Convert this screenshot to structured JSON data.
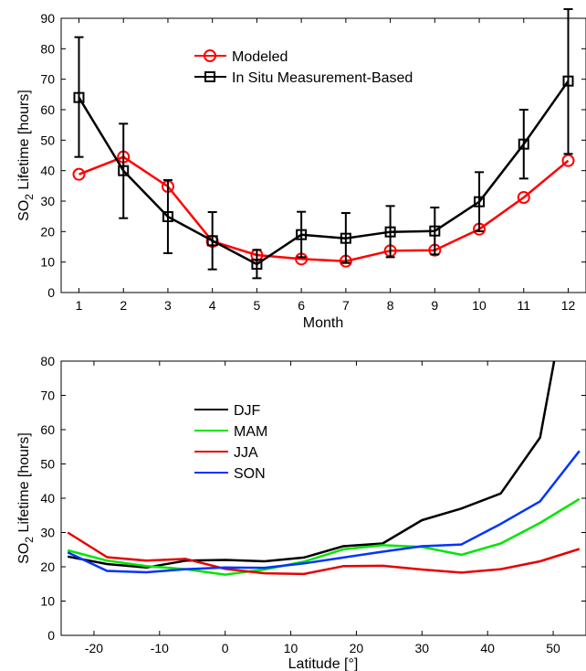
{
  "chart_data": [
    {
      "type": "line",
      "xlabel": "Month",
      "ylabel_main": "SO",
      "ylabel_sub": "2",
      "ylabel_rest": " Lifetime [hours]",
      "xlim": [
        0.6,
        12.4
      ],
      "ylim": [
        0,
        90
      ],
      "xticks": [
        1,
        2,
        3,
        4,
        5,
        6,
        7,
        8,
        9,
        10,
        11,
        12
      ],
      "yticks": [
        0,
        10,
        20,
        30,
        40,
        50,
        60,
        70,
        80,
        90
      ],
      "legend_position": "top-center",
      "x": [
        1,
        2,
        3,
        4,
        5,
        6,
        7,
        8,
        9,
        10,
        11,
        12
      ],
      "series": [
        {
          "name": "Modeled",
          "color": "#ff0000",
          "marker": "circle",
          "values": [
            38.8,
            44.5,
            34.8,
            16.8,
            12.3,
            11.0,
            10.3,
            13.7,
            13.9,
            20.8,
            31.2,
            43.3
          ]
        },
        {
          "name": "In Situ Measurement-Based",
          "color": "#000000",
          "marker": "square",
          "values": [
            64.0,
            40.0,
            24.9,
            17.0,
            9.3,
            19.0,
            17.8,
            19.9,
            20.2,
            29.8,
            48.7,
            69.4
          ],
          "error_low": [
            44.5,
            24.4,
            12.9,
            7.6,
            4.7,
            11.6,
            9.7,
            11.6,
            12.5,
            20.1,
            37.4,
            45.5
          ],
          "error_high": [
            83.8,
            55.4,
            36.9,
            26.4,
            14.0,
            26.5,
            26.1,
            28.4,
            27.9,
            39.5,
            60.0,
            93.0
          ]
        }
      ]
    },
    {
      "type": "line",
      "xlabel": "Latitude [°]",
      "ylabel_main": "SO",
      "ylabel_sub": "2",
      "ylabel_rest": " Lifetime [hours]",
      "xlim": [
        -25,
        55
      ],
      "ylim": [
        0,
        80
      ],
      "xticks": [
        -20,
        -10,
        0,
        10,
        20,
        30,
        40,
        50
      ],
      "yticks": [
        0,
        10,
        20,
        30,
        40,
        50,
        60,
        70,
        80
      ],
      "legend_position": "top-left",
      "x": [
        -24,
        -18,
        -12,
        -6,
        0,
        6,
        12,
        18,
        24,
        30,
        36,
        42,
        48,
        54
      ],
      "series": [
        {
          "name": "DJF",
          "color": "#000000",
          "values": [
            23.0,
            20.8,
            19.8,
            21.8,
            22.0,
            21.6,
            22.7,
            26.0,
            26.8,
            33.6,
            37.0,
            41.4,
            57.7,
            120
          ]
        },
        {
          "name": "MAM",
          "color": "#00e600",
          "values": [
            24.8,
            21.8,
            20.2,
            19.3,
            17.7,
            19.2,
            21.5,
            25.1,
            26.3,
            25.8,
            23.5,
            26.8,
            32.8,
            39.8
          ]
        },
        {
          "name": "JJA",
          "color": "#e60000",
          "values": [
            30.0,
            22.8,
            21.8,
            22.3,
            19.4,
            18.1,
            17.9,
            20.2,
            20.3,
            19.2,
            18.3,
            19.3,
            21.6,
            25.2
          ]
        },
        {
          "name": "SON",
          "color": "#0033ff",
          "values": [
            24.2,
            18.8,
            18.4,
            19.3,
            19.8,
            19.7,
            21.0,
            22.7,
            24.4,
            26.0,
            26.5,
            32.5,
            39.1,
            53.8
          ]
        }
      ]
    }
  ]
}
